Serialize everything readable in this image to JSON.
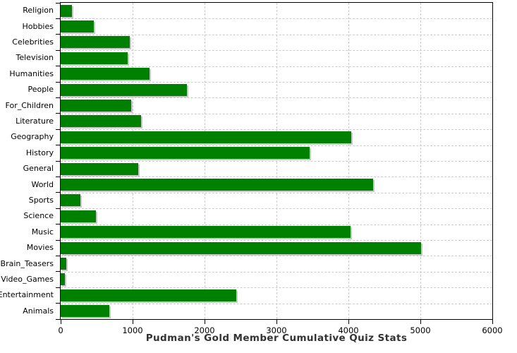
{
  "chart_data": {
    "type": "bar",
    "orientation": "horizontal",
    "title": "Pudman's Gold Member Cumulative Quiz Stats",
    "categories": [
      "Religion",
      "Hobbies",
      "Celebrities",
      "Television",
      "Humanities",
      "People",
      "For_Children",
      "Literature",
      "Geography",
      "History",
      "General",
      "World",
      "Sports",
      "Science",
      "Music",
      "Movies",
      "Brain_Teasers",
      "Video_Games",
      "Entertainment",
      "Animals"
    ],
    "values": [
      160,
      460,
      960,
      935,
      1235,
      1755,
      980,
      1120,
      4040,
      3460,
      1075,
      4340,
      275,
      490,
      4025,
      5005,
      80,
      60,
      2440,
      675
    ],
    "xlabel": "",
    "ylabel": "",
    "xlim": [
      0,
      6000
    ],
    "x_ticks": [
      0,
      1000,
      2000,
      3000,
      4000,
      5000,
      6000
    ],
    "grid": "dashed",
    "legend_position": "none",
    "colors": {
      "bar": "#008000",
      "bar_shadow": "#c8c8c8",
      "gridline": "#cccccc",
      "axis": "#000000",
      "tick_label": "#000000",
      "title_text": "#333333",
      "background": "#ffffff"
    }
  }
}
